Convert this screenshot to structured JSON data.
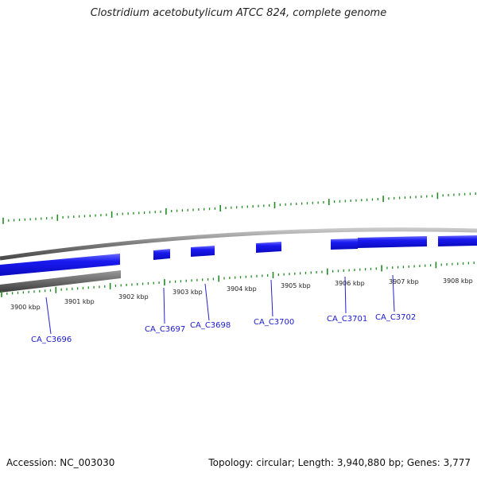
{
  "title": "Clostridium acetobutylicum ATCC 824, complete genome",
  "footer": {
    "accession": "Accession: NC_003030",
    "summary": "Topology: circular; Length: 3,940,880 bp; Genes: 3,777"
  },
  "colors": {
    "gene": "#1414e6",
    "gene_highlight": "#6a6aff",
    "tick": "#228b22",
    "backbone": "#808080",
    "label": "#1a1acc"
  },
  "scale_labels": [
    "3900 kbp",
    "3901 kbp",
    "3902 kbp",
    "3903 kbp",
    "3904 kbp",
    "3905 kbp",
    "3906 kbp",
    "3907 kbp",
    "3908 kbp"
  ],
  "gene_labels": [
    "CA_C3696",
    "CA_C3697",
    "CA_C3698",
    "CA_C3700",
    "CA_C3701",
    "CA_C3702"
  ]
}
